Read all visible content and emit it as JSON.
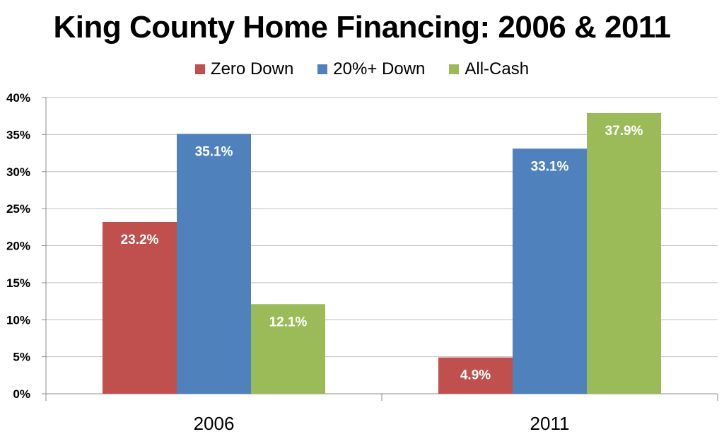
{
  "chart_data": {
    "type": "bar",
    "title": "King County Home Financing: 2006 & 2011",
    "categories": [
      "2006",
      "2011"
    ],
    "series": [
      {
        "name": "Zero Down",
        "color": "#c0504d",
        "values": [
          23.2,
          4.9
        ],
        "labels": [
          "23.2%",
          "4.9%"
        ]
      },
      {
        "name": "20%+ Down",
        "color": "#4f81bd",
        "values": [
          35.1,
          33.1
        ],
        "labels": [
          "35.1%",
          "33.1%"
        ]
      },
      {
        "name": "All-Cash",
        "color": "#9bbb59",
        "values": [
          12.1,
          37.9
        ],
        "labels": [
          "12.1%",
          "37.9%"
        ]
      }
    ],
    "y_ticks": [
      "0%",
      "5%",
      "10%",
      "15%",
      "20%",
      "25%",
      "30%",
      "35%",
      "40%"
    ],
    "ylim": [
      0,
      40
    ],
    "grid": true,
    "legend_position": "top"
  }
}
